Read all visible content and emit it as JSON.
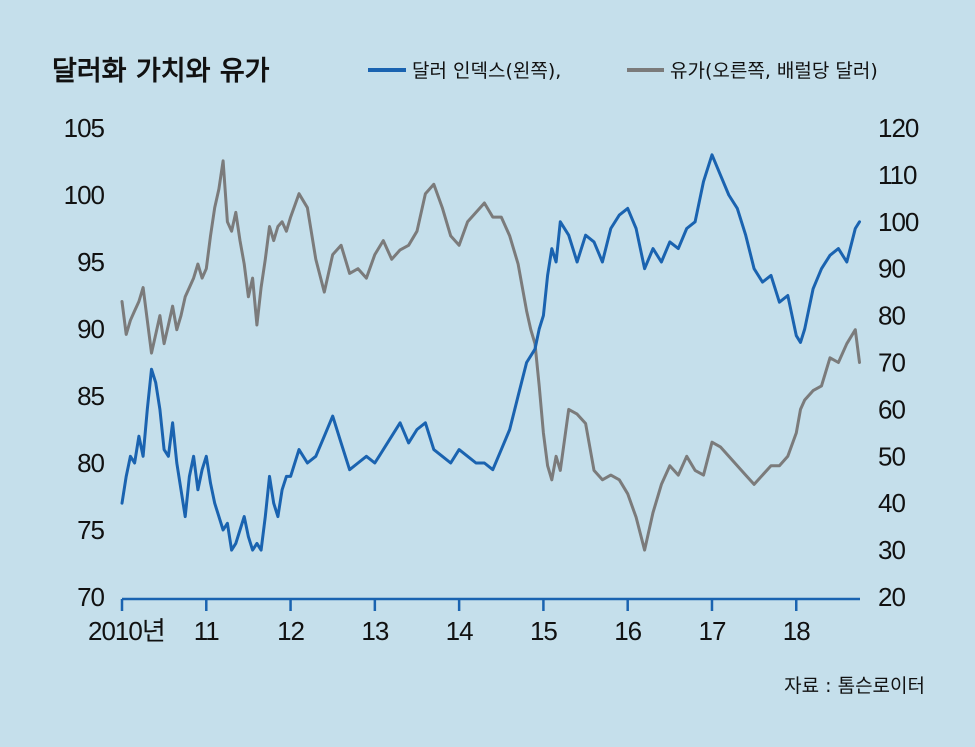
{
  "title": "달러화 가치와 유가",
  "legend": [
    {
      "label": "달러 인덱스(왼쪽),",
      "color": "#1a63b0"
    },
    {
      "label": "유가(오른쪽, 배럴당 달러)",
      "color": "#7b7b7b"
    }
  ],
  "source": "자료 : 톰슨로이터",
  "colors": {
    "background": "#c5dfeb",
    "dollar": "#1a63b0",
    "oil": "#7b7b7b",
    "axis": "#1a63b0"
  },
  "chart_data": {
    "type": "line",
    "title": "달러화 가치와 유가",
    "x_tick_labels": [
      "2010년",
      "11",
      "12",
      "13",
      "14",
      "15",
      "16",
      "17",
      "18"
    ],
    "x_ticks": [
      2010,
      2011,
      2012,
      2013,
      2014,
      2015,
      2016,
      2017,
      2018
    ],
    "xlim": [
      2010,
      2018.78
    ],
    "left_axis": {
      "ylim": [
        70,
        105
      ],
      "ticks": [
        70,
        75,
        80,
        85,
        90,
        95,
        100,
        105
      ]
    },
    "right_axis": {
      "ylim": [
        20,
        120
      ],
      "ticks": [
        20,
        30,
        40,
        50,
        60,
        70,
        80,
        90,
        100,
        110,
        120
      ]
    },
    "series": [
      {
        "name": "달러 인덱스(왼쪽)",
        "axis": "left",
        "x": [
          2010.0,
          2010.05,
          2010.1,
          2010.15,
          2010.2,
          2010.25,
          2010.3,
          2010.35,
          2010.4,
          2010.45,
          2010.5,
          2010.55,
          2010.6,
          2010.65,
          2010.7,
          2010.75,
          2010.8,
          2010.85,
          2010.9,
          2010.95,
          2011.0,
          2011.05,
          2011.1,
          2011.15,
          2011.2,
          2011.25,
          2011.3,
          2011.35,
          2011.4,
          2011.45,
          2011.5,
          2011.55,
          2011.6,
          2011.65,
          2011.7,
          2011.75,
          2011.8,
          2011.85,
          2011.9,
          2011.95,
          2012.0,
          2012.1,
          2012.2,
          2012.3,
          2012.4,
          2012.5,
          2012.6,
          2012.7,
          2012.8,
          2012.9,
          2013.0,
          2013.1,
          2013.2,
          2013.3,
          2013.4,
          2013.5,
          2013.6,
          2013.7,
          2013.8,
          2013.9,
          2014.0,
          2014.1,
          2014.2,
          2014.3,
          2014.4,
          2014.5,
          2014.6,
          2014.7,
          2014.8,
          2014.85,
          2014.9,
          2014.95,
          2015.0,
          2015.05,
          2015.1,
          2015.15,
          2015.2,
          2015.3,
          2015.4,
          2015.5,
          2015.6,
          2015.7,
          2015.8,
          2015.9,
          2016.0,
          2016.1,
          2016.2,
          2016.3,
          2016.4,
          2016.5,
          2016.6,
          2016.7,
          2016.8,
          2016.9,
          2017.0,
          2017.1,
          2017.2,
          2017.3,
          2017.4,
          2017.5,
          2017.6,
          2017.7,
          2017.8,
          2017.9,
          2018.0,
          2018.05,
          2018.1,
          2018.2,
          2018.3,
          2018.4,
          2018.5,
          2018.6,
          2018.7,
          2018.75
        ],
        "values": [
          77.0,
          79.0,
          80.5,
          80.0,
          82.0,
          80.5,
          84.0,
          87.0,
          86.0,
          84.0,
          81.0,
          80.5,
          83.0,
          80.0,
          78.0,
          76.0,
          79.0,
          80.5,
          78.0,
          79.5,
          80.5,
          78.5,
          77.0,
          76.0,
          75.0,
          75.5,
          73.5,
          74.0,
          75.0,
          76.0,
          74.5,
          73.5,
          74.0,
          73.5,
          76.0,
          79.0,
          77.0,
          76.0,
          78.0,
          79.0,
          79.0,
          81.0,
          80.0,
          80.5,
          82.0,
          83.5,
          81.5,
          79.5,
          80.0,
          80.5,
          80.0,
          81.0,
          82.0,
          83.0,
          81.5,
          82.5,
          83.0,
          81.0,
          80.5,
          80.0,
          81.0,
          80.5,
          80.0,
          80.0,
          79.5,
          81.0,
          82.5,
          85.0,
          87.5,
          88.0,
          88.5,
          90.0,
          91.0,
          94.0,
          96.0,
          95.0,
          98.0,
          97.0,
          95.0,
          97.0,
          96.5,
          95.0,
          97.5,
          98.5,
          99.0,
          97.5,
          94.5,
          96.0,
          95.0,
          96.5,
          96.0,
          97.5,
          98.0,
          101.0,
          103.0,
          101.5,
          100.0,
          99.0,
          97.0,
          94.5,
          93.5,
          94.0,
          92.0,
          92.5,
          89.5,
          89.0,
          90.0,
          93.0,
          94.5,
          95.5,
          96.0,
          95.0,
          97.5,
          98.0
        ]
      },
      {
        "name": "유가(오른쪽, 배럴당 달러)",
        "axis": "right",
        "x": [
          2010.0,
          2010.05,
          2010.1,
          2010.15,
          2010.2,
          2010.25,
          2010.3,
          2010.35,
          2010.4,
          2010.45,
          2010.5,
          2010.55,
          2010.6,
          2010.65,
          2010.7,
          2010.75,
          2010.8,
          2010.85,
          2010.9,
          2010.95,
          2011.0,
          2011.05,
          2011.1,
          2011.15,
          2011.2,
          2011.25,
          2011.3,
          2011.35,
          2011.4,
          2011.45,
          2011.5,
          2011.55,
          2011.6,
          2011.65,
          2011.7,
          2011.75,
          2011.8,
          2011.85,
          2011.9,
          2011.95,
          2012.0,
          2012.1,
          2012.2,
          2012.3,
          2012.4,
          2012.5,
          2012.6,
          2012.7,
          2012.8,
          2012.9,
          2013.0,
          2013.1,
          2013.2,
          2013.3,
          2013.4,
          2013.5,
          2013.6,
          2013.7,
          2013.8,
          2013.9,
          2014.0,
          2014.1,
          2014.2,
          2014.3,
          2014.4,
          2014.5,
          2014.6,
          2014.7,
          2014.8,
          2014.85,
          2014.9,
          2014.95,
          2015.0,
          2015.05,
          2015.1,
          2015.15,
          2015.2,
          2015.3,
          2015.4,
          2015.5,
          2015.6,
          2015.7,
          2015.8,
          2015.9,
          2016.0,
          2016.1,
          2016.2,
          2016.3,
          2016.4,
          2016.5,
          2016.6,
          2016.7,
          2016.8,
          2016.9,
          2017.0,
          2017.1,
          2017.2,
          2017.3,
          2017.4,
          2017.5,
          2017.6,
          2017.7,
          2017.8,
          2017.9,
          2018.0,
          2018.05,
          2018.1,
          2018.2,
          2018.3,
          2018.4,
          2018.5,
          2018.6,
          2018.7,
          2018.75
        ],
        "values": [
          83.0,
          76.0,
          79.0,
          81.0,
          83.0,
          86.0,
          79.0,
          72.0,
          76.0,
          80.0,
          74.0,
          78.0,
          82.0,
          77.0,
          80.0,
          84.0,
          86.0,
          88.0,
          91.0,
          88.0,
          90.0,
          97.0,
          103.0,
          107.0,
          113.0,
          100.0,
          98.0,
          102.0,
          96.0,
          91.0,
          84.0,
          88.0,
          78.0,
          86.0,
          92.0,
          99.0,
          96.0,
          99.0,
          100.0,
          98.0,
          101.0,
          106.0,
          103.0,
          92.0,
          85.0,
          93.0,
          95.0,
          89.0,
          90.0,
          88.0,
          93.0,
          96.0,
          92.0,
          94.0,
          95.0,
          98.0,
          106.0,
          108.0,
          103.0,
          97.0,
          95.0,
          100.0,
          102.0,
          104.0,
          101.0,
          101.0,
          97.0,
          91.0,
          81.0,
          77.0,
          74.0,
          65.0,
          55.0,
          48.0,
          45.0,
          50.0,
          47.0,
          60.0,
          59.0,
          57.0,
          47.0,
          45.0,
          46.0,
          45.0,
          42.0,
          37.0,
          30.0,
          38.0,
          44.0,
          48.0,
          46.0,
          50.0,
          47.0,
          46.0,
          53.0,
          52.0,
          50.0,
          48.0,
          46.0,
          44.0,
          46.0,
          48.0,
          48.0,
          50.0,
          55.0,
          60.0,
          62.0,
          64.0,
          65.0,
          71.0,
          70.0,
          74.0,
          77.0,
          70.0
        ]
      }
    ]
  }
}
